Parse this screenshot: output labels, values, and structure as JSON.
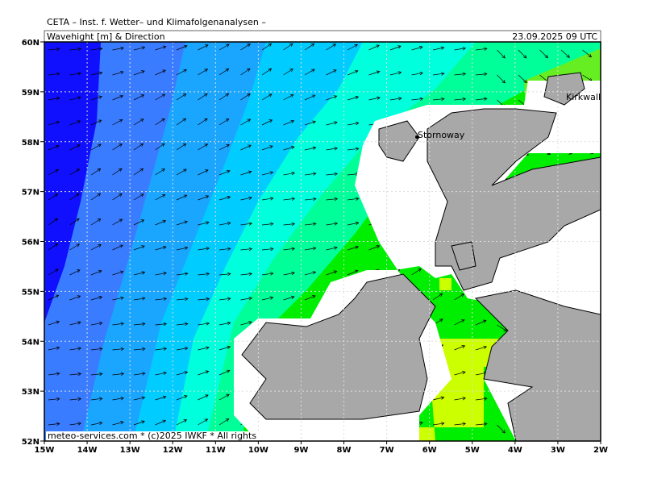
{
  "header": {
    "institute": "CETA – Inst. f. Wetter– und Klimafolgenanalysen –",
    "title": "Wavehight [m] & Direction",
    "datetime": "23.09.2025 09 UTC"
  },
  "axes": {
    "lat_labels": [
      "60N",
      "59N",
      "58N",
      "57N",
      "56N",
      "55N",
      "54N",
      "53N",
      "52N"
    ],
    "lon_labels": [
      "15W",
      "14W",
      "13W",
      "12W",
      "11W",
      "10W",
      "9W",
      "8W",
      "7W",
      "6W",
      "5W",
      "4W",
      "3W",
      "2W"
    ]
  },
  "places": [
    "Stornoway",
    "Kirkwall"
  ],
  "footer": "meteo-services.com * (c)2025 IWKF * All rights"
}
